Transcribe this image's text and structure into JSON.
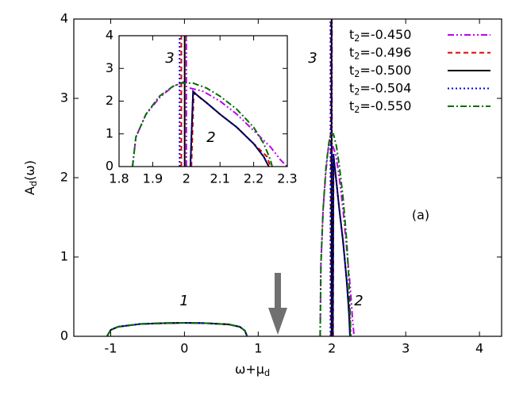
{
  "chart_data": {
    "type": "line",
    "xlabel": "ω+μd",
    "ylabel": "Ad(ω)",
    "xlim": [
      -1.5,
      4.3
    ],
    "ylim": [
      0,
      4
    ],
    "xticks": [
      -1,
      0,
      1,
      2,
      3,
      4
    ],
    "yticks": [
      0,
      1,
      2,
      3,
      4
    ],
    "legend": "upper right",
    "annotations": [
      "1",
      "2",
      "3",
      "(a)"
    ],
    "series": [
      {
        "name": "t2=-0.450",
        "color": "#c000f0",
        "style": "dash-dot-dot",
        "x": [
          -1.05,
          -1.0,
          -0.9,
          -0.6,
          -0.3,
          0,
          0.3,
          0.6,
          0.75,
          0.82,
          0.85,
          null,
          1.84,
          1.85,
          1.88,
          1.92,
          1.96,
          1.995,
          null,
          2.0,
          2.0,
          null,
          2.01,
          2.05,
          2.1,
          2.15,
          2.2,
          2.25,
          2.28,
          2.3
        ],
        "values": [
          0,
          0.08,
          0.12,
          0.155,
          0.165,
          0.17,
          0.165,
          0.15,
          0.12,
          0.07,
          0,
          null,
          0,
          0.9,
          1.6,
          2.1,
          2.45,
          2.6,
          null,
          0,
          4,
          null,
          2.4,
          2.3,
          2.0,
          1.6,
          1.1,
          0.6,
          0.2,
          0
        ]
      },
      {
        "name": "t2=-0.496",
        "color": "#e00000",
        "style": "dashed",
        "x": [
          -1.05,
          -1.0,
          -0.9,
          -0.6,
          -0.3,
          0,
          0.3,
          0.6,
          0.75,
          0.82,
          0.85,
          null,
          1.985,
          1.985,
          null,
          2.015,
          2.022,
          2.06,
          2.1,
          2.15,
          2.2,
          2.24,
          2.25
        ],
        "values": [
          0,
          0.08,
          0.12,
          0.155,
          0.165,
          0.17,
          0.165,
          0.15,
          0.12,
          0.07,
          0,
          null,
          0,
          4,
          null,
          0,
          2.25,
          1.95,
          1.6,
          1.2,
          0.7,
          0.3,
          0
        ]
      },
      {
        "name": "t2=-0.500",
        "color": "#000000",
        "style": "solid",
        "x": [
          -1.05,
          -1.0,
          -0.9,
          -0.6,
          -0.3,
          0,
          0.3,
          0.6,
          0.75,
          0.82,
          0.85,
          null,
          1.995,
          1.995,
          null,
          2.012,
          2.02,
          2.03,
          2.06,
          2.1,
          2.15,
          2.2,
          2.23,
          2.245
        ],
        "values": [
          0,
          0.08,
          0.12,
          0.155,
          0.165,
          0.17,
          0.165,
          0.15,
          0.12,
          0.07,
          0,
          null,
          0,
          4,
          null,
          0,
          2.3,
          2.2,
          1.95,
          1.6,
          1.2,
          0.7,
          0.3,
          0
        ]
      },
      {
        "name": "t2=-0.504",
        "color": "#0000e0",
        "style": "dotted",
        "x": [
          -1.05,
          -1.0,
          -0.9,
          -0.6,
          -0.3,
          0,
          0.3,
          0.6,
          0.75,
          0.82,
          0.85,
          null,
          1.98,
          1.98,
          null,
          2.012,
          2.02,
          2.03,
          2.06,
          2.1,
          2.15,
          2.2,
          2.23,
          2.245
        ],
        "values": [
          0,
          0.08,
          0.12,
          0.155,
          0.165,
          0.17,
          0.165,
          0.15,
          0.12,
          0.07,
          0,
          null,
          0,
          4,
          null,
          0,
          2.3,
          2.2,
          1.95,
          1.6,
          1.2,
          0.7,
          0.3,
          0
        ]
      },
      {
        "name": "t2=-0.550",
        "color": "#007000",
        "style": "dash-dot",
        "x": [
          -1.05,
          -1.0,
          -0.9,
          -0.6,
          -0.3,
          0,
          0.3,
          0.6,
          0.75,
          0.82,
          0.85,
          null,
          1.84,
          1.85,
          1.88,
          1.92,
          1.96,
          1.985,
          2.02,
          2.06,
          2.1,
          2.15,
          2.2,
          2.23,
          2.25,
          2.255
        ],
        "values": [
          0,
          0.08,
          0.12,
          0.155,
          0.165,
          0.17,
          0.165,
          0.15,
          0.12,
          0.07,
          0,
          null,
          0,
          0.9,
          1.6,
          2.15,
          2.45,
          2.55,
          2.55,
          2.4,
          2.15,
          1.75,
          1.2,
          0.7,
          0.2,
          0
        ]
      }
    ],
    "inset": {
      "xlim": [
        1.8,
        2.3
      ],
      "ylim": [
        0,
        4
      ],
      "xticks": [
        1.8,
        1.9,
        2,
        2.1,
        2.2,
        2.3
      ],
      "yticks": [
        0,
        1,
        2,
        3,
        4
      ],
      "annotations": [
        "3",
        "2"
      ]
    }
  }
}
